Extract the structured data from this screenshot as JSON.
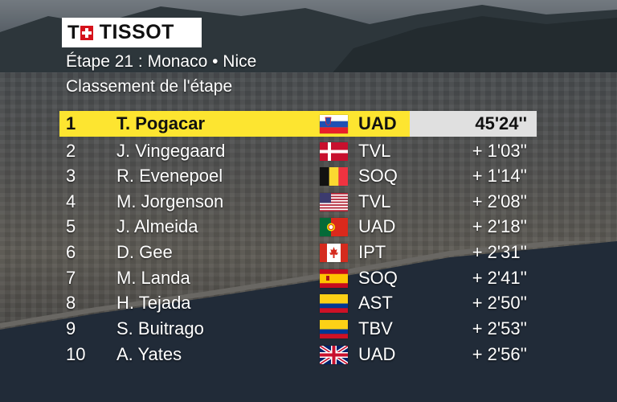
{
  "logo": {
    "brand": "TISSOT",
    "letter": "T"
  },
  "stage": {
    "title": "Étape 21 : Monaco • Nice",
    "subtitle": "Classement de l'étape"
  },
  "results": [
    {
      "pos": "1",
      "name": "T. Pogacar",
      "flag": "slovenia-flag",
      "team": "UAD",
      "time": "45'24''"
    },
    {
      "pos": "2",
      "name": "J. Vingegaard",
      "flag": "denmark-flag",
      "team": "TVL",
      "time": "+ 1'03''"
    },
    {
      "pos": "3",
      "name": "R. Evenepoel",
      "flag": "belgium-flag",
      "team": "SOQ",
      "time": "+ 1'14''"
    },
    {
      "pos": "4",
      "name": "M. Jorgenson",
      "flag": "usa-flag",
      "team": "TVL",
      "time": "+ 2'08''"
    },
    {
      "pos": "5",
      "name": "J. Almeida",
      "flag": "portugal-flag",
      "team": "UAD",
      "time": "+ 2'18''"
    },
    {
      "pos": "6",
      "name": "D. Gee",
      "flag": "canada-flag",
      "team": "IPT",
      "time": "+ 2'31''"
    },
    {
      "pos": "7",
      "name": "M. Landa",
      "flag": "spain-flag",
      "team": "SOQ",
      "time": "+ 2'41''"
    },
    {
      "pos": "8",
      "name": "H. Tejada",
      "flag": "colombia-flag",
      "team": "AST",
      "time": "+ 2'50''"
    },
    {
      "pos": "9",
      "name": "S. Buitrago",
      "flag": "colombia-flag",
      "team": "TBV",
      "time": "+ 2'53''"
    },
    {
      "pos": "10",
      "name": "A. Yates",
      "flag": "uk-flag",
      "team": "UAD",
      "time": "+ 2'56''"
    }
  ],
  "colors": {
    "leader_highlight": "#fde530",
    "time_box": "#e0e0e0",
    "tissot_red": "#d5121b"
  }
}
